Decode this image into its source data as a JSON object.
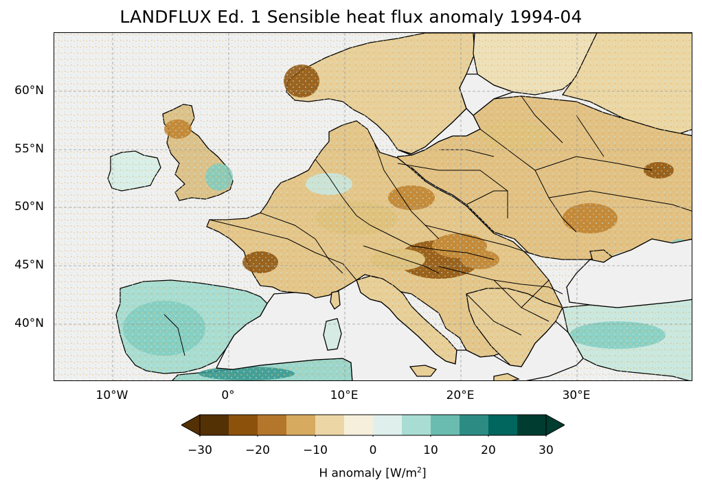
{
  "title": "LANDFLUX Ed. 1 Sensible heat flux anomaly 1994-04",
  "map": {
    "projection": "PlateCarree",
    "lon_range": [
      -15,
      40
    ],
    "lat_range": [
      35,
      65
    ],
    "gridlines": true,
    "lat_ticks": [
      "60°N",
      "55°N",
      "50°N",
      "45°N",
      "40°N"
    ],
    "lon_ticks": [
      "10°W",
      "0°",
      "10°E",
      "20°E",
      "30°E"
    ],
    "ocean_color": "#f0f0f0",
    "coastlines": true,
    "borders": true
  },
  "colorbar": {
    "label_prefix": "H anomaly [W/m",
    "label_sup": "2",
    "label_suffix": "]",
    "tick_labels": [
      "−30",
      "−20",
      "−10",
      "0",
      "10",
      "20",
      "30"
    ],
    "levels": [
      -30,
      -25,
      -20,
      -15,
      -10,
      -5,
      0,
      5,
      10,
      15,
      20,
      25,
      30
    ],
    "colors": [
      "#543005",
      "#8c510a",
      "#bf812d",
      "#dfc27d",
      "#f6e8c3",
      "#f5f5f5",
      "#c7eae5",
      "#80cdc1",
      "#35978f",
      "#01665e",
      "#003c30",
      "#003c30"
    ],
    "extend": "both"
  }
}
